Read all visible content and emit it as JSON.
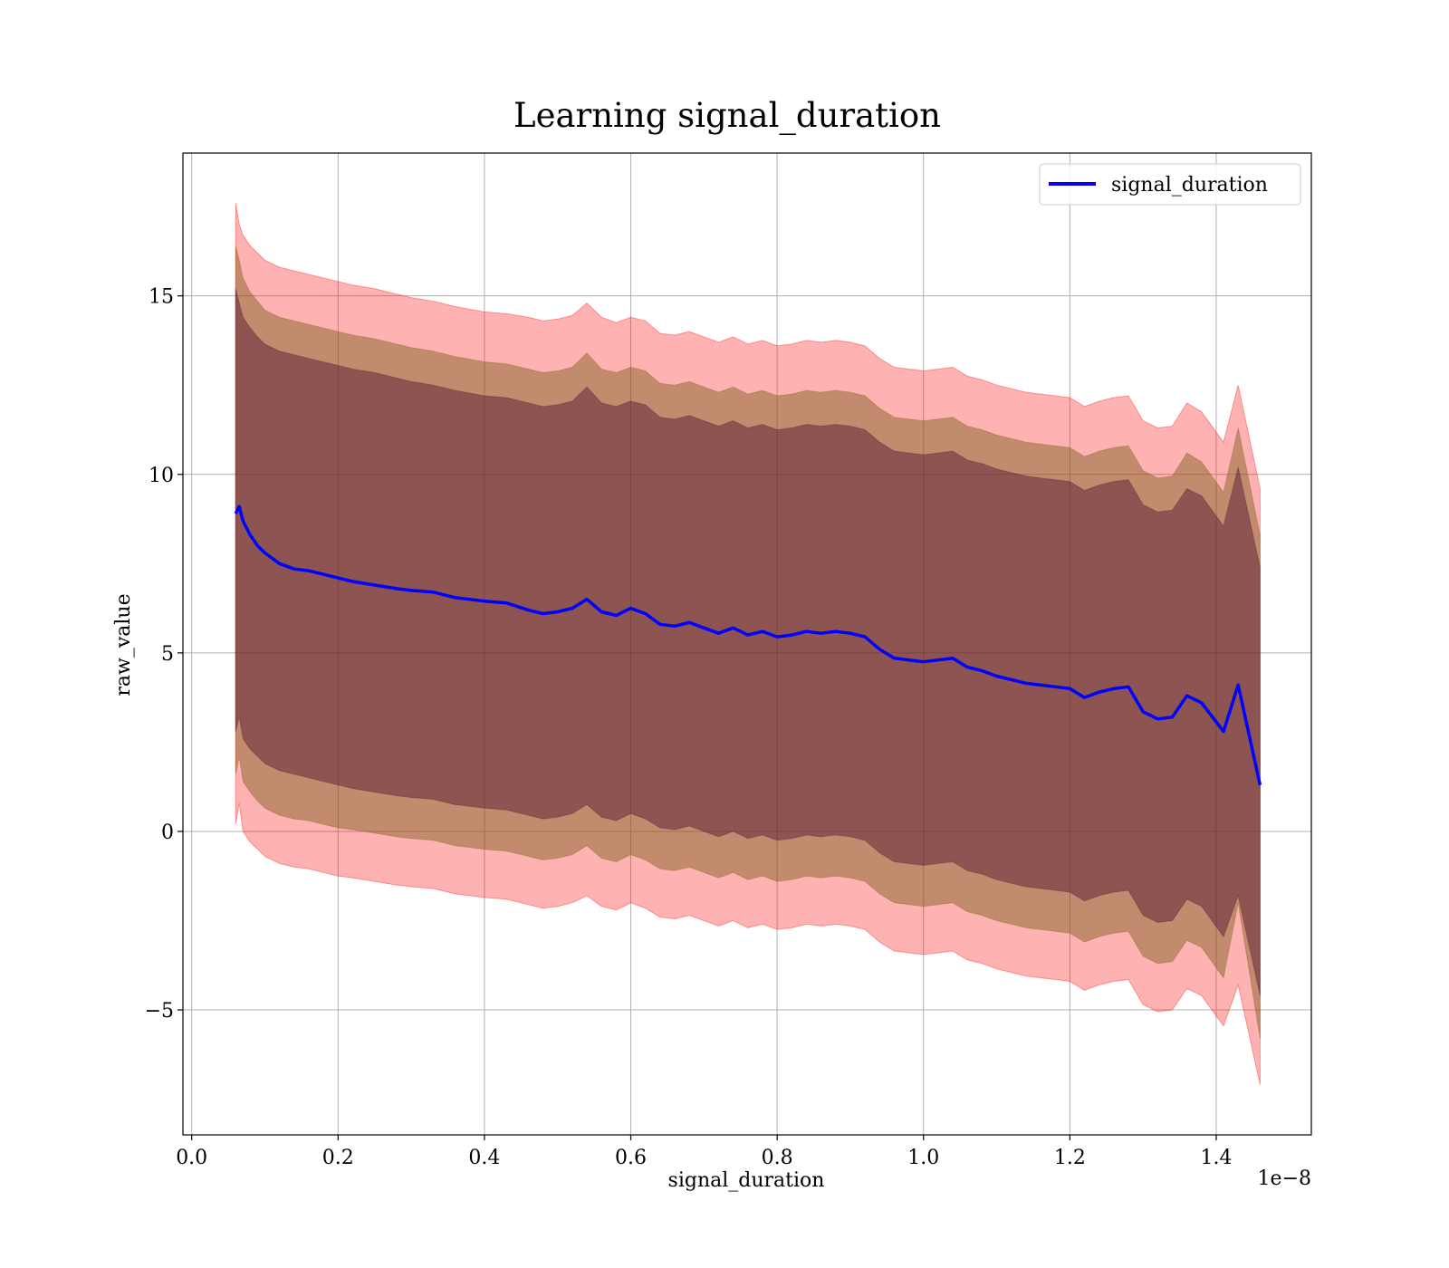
{
  "chart_data": {
    "type": "line",
    "title": "Learning signal_duration",
    "xlabel": "signal_duration",
    "ylabel": "raw_value",
    "x_offset_label": "1e−8",
    "xlim": [
      -0.012,
      1.53
    ],
    "ylim": [
      -8.5,
      19.0
    ],
    "xticks": [
      0.0,
      0.2,
      0.4,
      0.6,
      0.8,
      1.0,
      1.2,
      1.4
    ],
    "xtick_labels": [
      "0.0",
      "0.2",
      "0.4",
      "0.6",
      "0.8",
      "1.0",
      "1.2",
      "1.4"
    ],
    "yticks": [
      -5,
      0,
      5,
      10,
      15
    ],
    "ytick_labels": [
      "−5",
      "0",
      "5",
      "10",
      "15"
    ],
    "grid": true,
    "legend_position": "top-right",
    "colors": {
      "line": "#0000ff",
      "band": "#ff0000",
      "band_inner": "#4c1230",
      "band_mid": "#7a5a1a"
    },
    "series": [
      {
        "name": "signal_duration",
        "x": [
          0.06,
          0.065,
          0.07,
          0.08,
          0.09,
          0.1,
          0.12,
          0.14,
          0.16,
          0.18,
          0.2,
          0.22,
          0.25,
          0.28,
          0.3,
          0.33,
          0.36,
          0.4,
          0.43,
          0.46,
          0.48,
          0.5,
          0.52,
          0.54,
          0.56,
          0.58,
          0.6,
          0.62,
          0.64,
          0.66,
          0.68,
          0.7,
          0.72,
          0.74,
          0.76,
          0.78,
          0.8,
          0.82,
          0.84,
          0.86,
          0.88,
          0.9,
          0.92,
          0.94,
          0.96,
          0.98,
          1.0,
          1.02,
          1.04,
          1.06,
          1.08,
          1.1,
          1.12,
          1.14,
          1.16,
          1.18,
          1.2,
          1.22,
          1.24,
          1.26,
          1.28,
          1.3,
          1.32,
          1.34,
          1.36,
          1.38,
          1.41,
          1.43,
          1.46
        ],
        "y": [
          8.9,
          9.1,
          8.7,
          8.3,
          8.0,
          7.8,
          7.5,
          7.35,
          7.3,
          7.2,
          7.1,
          7.0,
          6.9,
          6.8,
          6.75,
          6.7,
          6.55,
          6.45,
          6.4,
          6.2,
          6.1,
          6.15,
          6.25,
          6.5,
          6.15,
          6.05,
          6.25,
          6.1,
          5.8,
          5.75,
          5.85,
          5.7,
          5.55,
          5.7,
          5.5,
          5.6,
          5.45,
          5.5,
          5.6,
          5.55,
          5.6,
          5.55,
          5.45,
          5.1,
          4.85,
          4.8,
          4.75,
          4.8,
          4.85,
          4.6,
          4.5,
          4.35,
          4.25,
          4.15,
          4.1,
          4.05,
          4.0,
          3.75,
          3.9,
          4.0,
          4.05,
          3.35,
          3.15,
          3.2,
          3.8,
          3.6,
          2.8,
          4.1,
          1.3
        ],
        "band_3sd": {
          "upper": [
            17.6,
            17.0,
            16.7,
            16.4,
            16.2,
            16.0,
            15.8,
            15.7,
            15.6,
            15.5,
            15.4,
            15.3,
            15.2,
            15.05,
            14.95,
            14.85,
            14.7,
            14.55,
            14.5,
            14.4,
            14.3,
            14.35,
            14.45,
            14.8,
            14.4,
            14.25,
            14.4,
            14.3,
            13.95,
            13.9,
            14.0,
            13.85,
            13.7,
            13.85,
            13.65,
            13.75,
            13.6,
            13.65,
            13.75,
            13.7,
            13.75,
            13.7,
            13.6,
            13.25,
            13.0,
            12.95,
            12.9,
            12.95,
            13.0,
            12.75,
            12.65,
            12.5,
            12.4,
            12.3,
            12.25,
            12.2,
            12.15,
            11.9,
            12.05,
            12.15,
            12.2,
            11.5,
            11.3,
            11.35,
            12.0,
            11.75,
            10.9,
            12.5,
            9.6
          ],
          "lower": [
            0.2,
            0.8,
            0.0,
            -0.3,
            -0.5,
            -0.7,
            -0.9,
            -1.0,
            -1.05,
            -1.15,
            -1.25,
            -1.3,
            -1.4,
            -1.5,
            -1.55,
            -1.6,
            -1.75,
            -1.85,
            -1.9,
            -2.05,
            -2.15,
            -2.1,
            -2.0,
            -1.8,
            -2.1,
            -2.2,
            -2.0,
            -2.15,
            -2.4,
            -2.45,
            -2.35,
            -2.5,
            -2.65,
            -2.5,
            -2.7,
            -2.6,
            -2.75,
            -2.7,
            -2.6,
            -2.65,
            -2.6,
            -2.65,
            -2.75,
            -3.1,
            -3.35,
            -3.4,
            -3.45,
            -3.4,
            -3.35,
            -3.6,
            -3.7,
            -3.85,
            -3.95,
            -4.05,
            -4.1,
            -4.15,
            -4.2,
            -4.45,
            -4.3,
            -4.2,
            -4.15,
            -4.85,
            -5.05,
            -5.0,
            -4.4,
            -4.6,
            -5.45,
            -4.3,
            -7.1
          ]
        },
        "band_2sd": {
          "upper": [
            16.4,
            16.0,
            15.5,
            15.1,
            14.85,
            14.6,
            14.4,
            14.3,
            14.2,
            14.1,
            14.0,
            13.9,
            13.8,
            13.65,
            13.55,
            13.45,
            13.3,
            13.15,
            13.1,
            12.95,
            12.85,
            12.9,
            13.0,
            13.4,
            12.95,
            12.85,
            13.0,
            12.9,
            12.55,
            12.5,
            12.6,
            12.45,
            12.3,
            12.45,
            12.25,
            12.35,
            12.2,
            12.25,
            12.35,
            12.3,
            12.35,
            12.3,
            12.2,
            11.85,
            11.6,
            11.55,
            11.5,
            11.55,
            11.6,
            11.35,
            11.25,
            11.1,
            11.0,
            10.9,
            10.85,
            10.8,
            10.75,
            10.5,
            10.65,
            10.75,
            10.8,
            10.1,
            9.9,
            9.95,
            10.6,
            10.35,
            9.5,
            11.3,
            8.3
          ],
          "lower": [
            1.6,
            2.1,
            1.4,
            1.1,
            0.85,
            0.65,
            0.45,
            0.35,
            0.3,
            0.2,
            0.1,
            0.05,
            -0.05,
            -0.15,
            -0.2,
            -0.25,
            -0.4,
            -0.5,
            -0.55,
            -0.7,
            -0.8,
            -0.75,
            -0.65,
            -0.4,
            -0.75,
            -0.85,
            -0.65,
            -0.8,
            -1.05,
            -1.1,
            -1.0,
            -1.15,
            -1.3,
            -1.15,
            -1.35,
            -1.25,
            -1.4,
            -1.35,
            -1.25,
            -1.3,
            -1.25,
            -1.3,
            -1.4,
            -1.75,
            -2.0,
            -2.05,
            -2.1,
            -2.05,
            -2.0,
            -2.25,
            -2.35,
            -2.5,
            -2.6,
            -2.7,
            -2.75,
            -2.8,
            -2.85,
            -3.1,
            -2.95,
            -2.85,
            -2.8,
            -3.5,
            -3.7,
            -3.65,
            -3.05,
            -3.25,
            -4.1,
            -2.0,
            -5.8
          ]
        },
        "band_1sd": {
          "upper": [
            15.2,
            14.8,
            14.4,
            14.1,
            13.85,
            13.65,
            13.45,
            13.35,
            13.25,
            13.15,
            13.05,
            12.95,
            12.85,
            12.7,
            12.6,
            12.5,
            12.35,
            12.2,
            12.15,
            12.0,
            11.9,
            11.95,
            12.05,
            12.45,
            12.0,
            11.9,
            12.05,
            11.95,
            11.6,
            11.55,
            11.65,
            11.5,
            11.35,
            11.5,
            11.3,
            11.4,
            11.25,
            11.3,
            11.4,
            11.35,
            11.4,
            11.35,
            11.25,
            10.9,
            10.65,
            10.6,
            10.55,
            10.6,
            10.65,
            10.4,
            10.3,
            10.15,
            10.05,
            9.95,
            9.9,
            9.85,
            9.8,
            9.55,
            9.7,
            9.8,
            9.85,
            9.15,
            8.95,
            9.0,
            9.6,
            9.4,
            8.55,
            10.2,
            7.4
          ],
          "lower": [
            2.8,
            3.2,
            2.6,
            2.3,
            2.1,
            1.9,
            1.7,
            1.6,
            1.5,
            1.4,
            1.3,
            1.2,
            1.1,
            1.0,
            0.95,
            0.9,
            0.75,
            0.65,
            0.6,
            0.45,
            0.35,
            0.4,
            0.5,
            0.75,
            0.4,
            0.3,
            0.5,
            0.35,
            0.1,
            0.05,
            0.15,
            0.0,
            -0.15,
            0.0,
            -0.2,
            -0.1,
            -0.25,
            -0.2,
            -0.1,
            -0.15,
            -0.1,
            -0.15,
            -0.25,
            -0.6,
            -0.85,
            -0.9,
            -0.95,
            -0.9,
            -0.85,
            -1.1,
            -1.2,
            -1.35,
            -1.45,
            -1.55,
            -1.6,
            -1.65,
            -1.7,
            -1.95,
            -1.8,
            -1.7,
            -1.65,
            -2.35,
            -2.55,
            -2.5,
            -1.9,
            -2.1,
            -2.95,
            -1.8,
            -4.6
          ]
        }
      }
    ]
  }
}
